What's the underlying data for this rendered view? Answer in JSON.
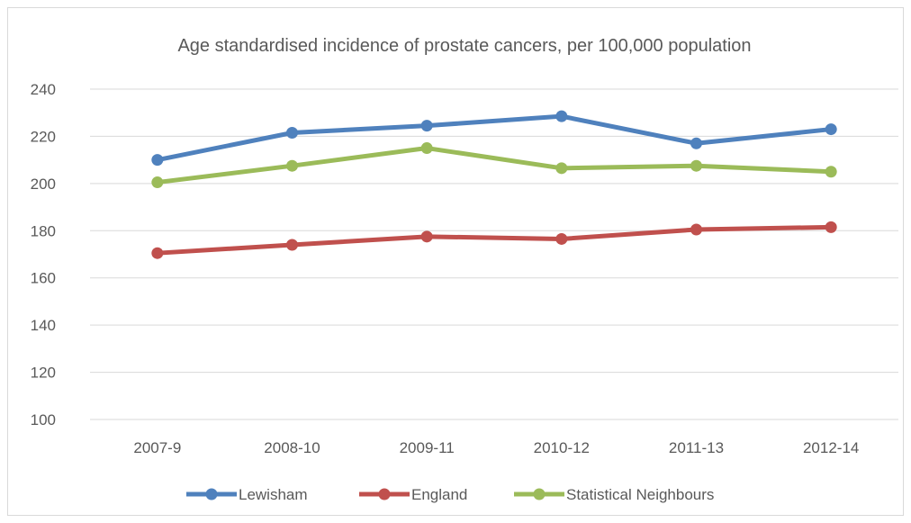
{
  "chart_data": {
    "type": "line",
    "title": "Age standardised incidence of prostate cancers, per 100,000 population",
    "xlabel": "",
    "ylabel": "",
    "categories": [
      "2007-9",
      "2008-10",
      "2009-11",
      "2010-12",
      "2011-13",
      "2012-14"
    ],
    "ylim": [
      100,
      240
    ],
    "yticks": [
      100,
      120,
      140,
      160,
      180,
      200,
      220,
      240
    ],
    "grid": true,
    "legend_position": "bottom",
    "series": [
      {
        "name": "Lewisham",
        "color": "#4f81bd",
        "values": [
          210,
          221.5,
          224.5,
          228.5,
          217,
          223
        ]
      },
      {
        "name": "England",
        "color": "#c0504d",
        "values": [
          170.5,
          174,
          177.5,
          176.5,
          180.5,
          181.5
        ]
      },
      {
        "name": "Statistical Neighbours",
        "color": "#9bbb59",
        "values": [
          200.5,
          207.5,
          215,
          206.5,
          207.5,
          205
        ]
      }
    ]
  }
}
